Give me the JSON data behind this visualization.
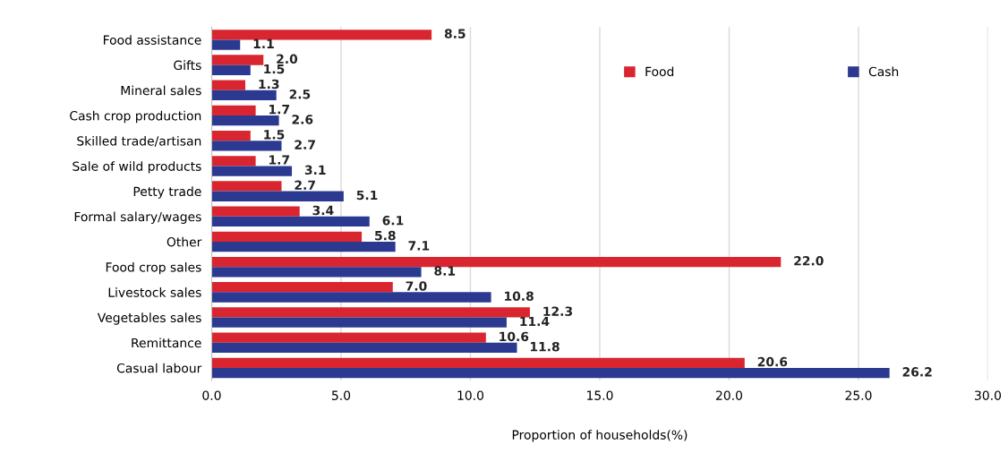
{
  "chart_data": {
    "type": "bar",
    "orientation": "horizontal",
    "xlabel": "Proportion of households(%)",
    "categories": [
      "Food assistance",
      "Gifts",
      "Mineral sales",
      "Cash crop production",
      "Skilled trade/artisan",
      "Sale of wild products",
      "Petty trade",
      "Formal salary/wages",
      "Other",
      "Food crop sales",
      "Livestock sales",
      "Vegetables sales",
      "Remittance",
      "Casual labour"
    ],
    "series": [
      {
        "name": "Food",
        "color": "#d9252f",
        "values": [
          8.5,
          2.0,
          1.3,
          1.7,
          1.5,
          1.7,
          2.7,
          3.4,
          5.8,
          22.0,
          7.0,
          12.3,
          10.6,
          20.6
        ],
        "value_labels": [
          "8.5",
          "2.0",
          "1.3",
          "1.7",
          "1.5",
          "1.7",
          "2.7",
          "3.4",
          "5.8",
          "22.0",
          "7.0",
          "12.3",
          "10.6",
          "20.6"
        ]
      },
      {
        "name": "Cash",
        "color": "#2b3990",
        "values": [
          1.1,
          1.5,
          2.5,
          2.6,
          2.7,
          3.1,
          5.1,
          6.1,
          7.1,
          8.1,
          10.8,
          11.4,
          11.8,
          26.2
        ]
      }
    ],
    "xlim": [
      0,
      30
    ],
    "xticks": [
      {
        "value": 0,
        "label": "0.0"
      },
      {
        "value": 5,
        "label": "5.0"
      },
      {
        "value": 10,
        "label": "10.0"
      },
      {
        "value": 15,
        "label": "15.0"
      },
      {
        "value": 20,
        "label": "20.0"
      },
      {
        "value": 25,
        "label": "25.0"
      },
      {
        "value": 30,
        "label": "30.0"
      }
    ],
    "grid": "x",
    "legend": "top right",
    "data_labels": true
  }
}
